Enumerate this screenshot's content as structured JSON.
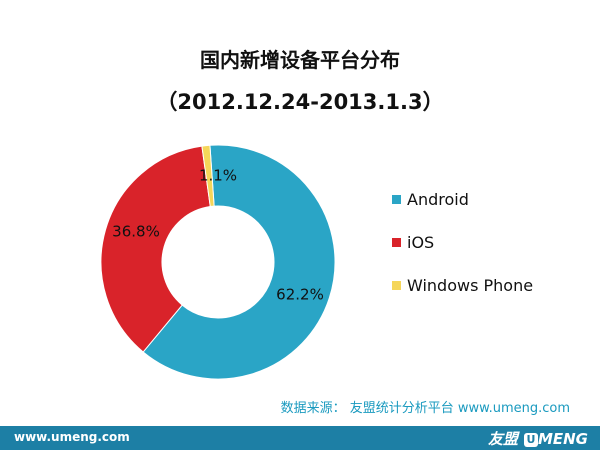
{
  "chart_data": {
    "type": "pie",
    "title": "国内新增设备平台分布",
    "subtitle": "（2012.12.24-2013.1.3）",
    "donut": true,
    "categories": [
      "Android",
      "iOS",
      "Windows Phone"
    ],
    "values": [
      62.2,
      36.8,
      1.1
    ],
    "data_labels": [
      "62.2%",
      "36.8%",
      "1.1%"
    ],
    "unit": "%",
    "legend_position": "right",
    "colors": [
      "#2aa5c6",
      "#d9232a",
      "#f5d65a"
    ]
  },
  "source": "数据来源： 友盟统计分析平台 www.umeng.com",
  "footer": {
    "url": "www.umeng.com",
    "logo_cn": "友盟",
    "logo_en": "MENG",
    "logo_mark": "U"
  }
}
